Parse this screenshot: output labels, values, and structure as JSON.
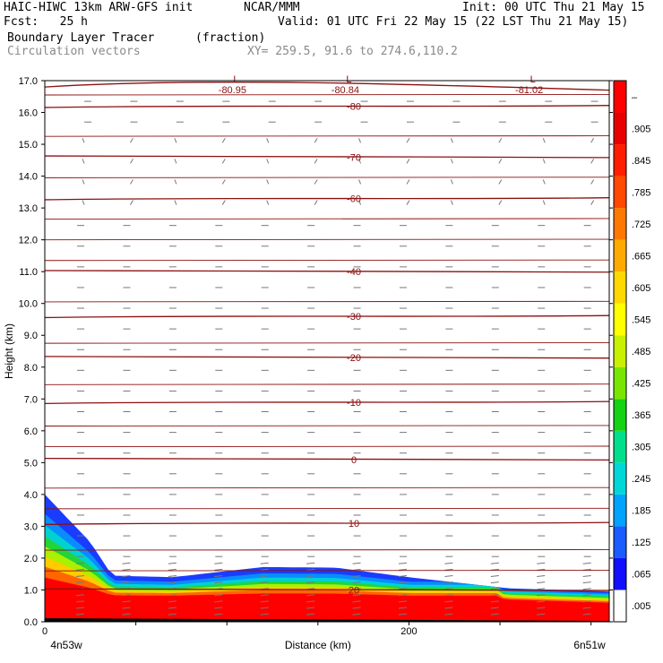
{
  "header": {
    "model": "HAIC-HIWC 13km ARW-GFS init",
    "org": "NCAR/MMM",
    "init": "Init: 00 UTC Thu 21 May 15",
    "fcst": "Fcst:   25 h",
    "valid": "Valid: 01 UTC Fri 22 May 15 (22 LST Thu 21 May 15)",
    "field": "Boundary Layer Tracer",
    "units": "(fraction)",
    "vectors": "Circulation vectors",
    "xy": "XY= 259.5, 91.6 to 274.6,110.2"
  },
  "chart_data": {
    "type": "heatmap",
    "title": "Boundary Layer Tracer",
    "ylabel": "Height (km)",
    "xlabel": "Distance (km)",
    "xlim": [
      0,
      310
    ],
    "ylim": [
      0,
      17
    ],
    "x_ticks": [
      {
        "value": 0,
        "label": "0"
      },
      {
        "value": 200,
        "label": "200"
      }
    ],
    "x_end_labels": {
      "left": "4n53w",
      "right": "6n51w"
    },
    "y_ticks": [
      "0.0",
      "1.0",
      "2.0",
      "3.0",
      "4.0",
      "5.0",
      "6.0",
      "7.0",
      "8.0",
      "9.0",
      "10.0",
      "11.0",
      "12.0",
      "13.0",
      "14.0",
      "15.0",
      "16.0",
      "17.0"
    ],
    "colorbar": {
      "labels": [
        ".005",
        ".065",
        ".125",
        ".185",
        ".245",
        ".305",
        ".365",
        ".425",
        ".485",
        ".545",
        ".605",
        ".665",
        ".725",
        ".785",
        ".845",
        ".905",
        "–"
      ],
      "colors": [
        "#ffffff",
        "#1010ff",
        "#1a5cff",
        "#00a4ff",
        "#00d8d8",
        "#00e08c",
        "#14d214",
        "#78e600",
        "#c8f000",
        "#ffff00",
        "#ffd800",
        "#ffaa00",
        "#ff7800",
        "#ff4800",
        "#ff1e00",
        "#e80000",
        "#ff0000"
      ]
    },
    "isotherms": [
      {
        "label": "20",
        "y": 1.0
      },
      {
        "label": "10",
        "y": 3.1
      },
      {
        "label": "0",
        "y": 5.1
      },
      {
        "label": "-10",
        "y": 6.9
      },
      {
        "label": "-20",
        "y": 8.3
      },
      {
        "label": "-30",
        "y": 9.6
      },
      {
        "label": "-40",
        "y": 11.0
      },
      {
        "label": "-60",
        "y": 13.3
      },
      {
        "label": "-70",
        "y": 14.6
      },
      {
        "label": "-80",
        "y": 16.2
      }
    ],
    "minima": [
      {
        "symbol": "L",
        "label": "-80.95",
        "x": 105
      },
      {
        "symbol": "L",
        "label": "-80.84",
        "x": 167
      },
      {
        "symbol": "L",
        "label": "-81.02",
        "x": 268
      }
    ],
    "tracer_top_km": [
      {
        "x": 0,
        "top": 4.0
      },
      {
        "x": 25,
        "top": 2.5
      },
      {
        "x": 37,
        "top": 1.45
      },
      {
        "x": 70,
        "top": 1.4
      },
      {
        "x": 120,
        "top": 1.72
      },
      {
        "x": 160,
        "top": 1.7
      },
      {
        "x": 200,
        "top": 1.4
      },
      {
        "x": 255,
        "top": 1.05
      },
      {
        "x": 310,
        "top": 0.95
      }
    ],
    "grid": false,
    "legend": "right"
  }
}
